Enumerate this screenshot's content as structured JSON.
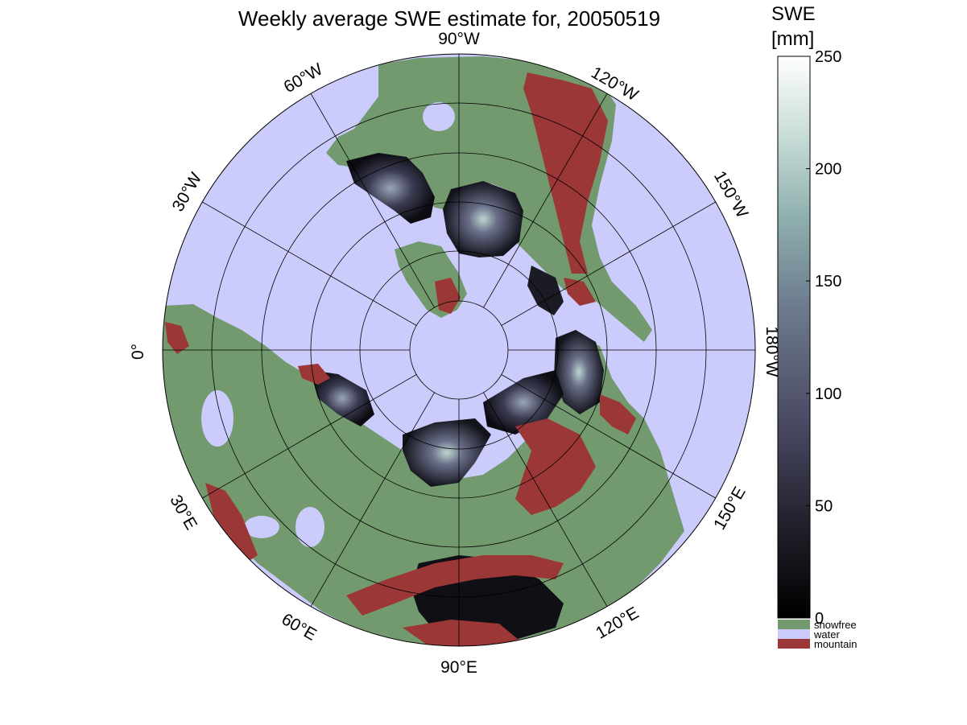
{
  "title": "Weekly average SWE estimate for, 20050519",
  "colorbar": {
    "label_line1": "SWE",
    "label_line2": "[mm]",
    "ticks": [
      "0",
      "50",
      "100",
      "150",
      "200",
      "250"
    ],
    "range": [
      0,
      250
    ]
  },
  "categories": [
    {
      "name": "snowfree",
      "color": "#739a6e"
    },
    {
      "name": "water",
      "color": "#ccccfc"
    },
    {
      "name": "mountain",
      "color": "#9b3737"
    }
  ],
  "longitude_labels": {
    "deg_90W": "90°W",
    "deg_120W": "120°W",
    "deg_150W": "150°W",
    "deg_180W": "180°W",
    "deg_150E": "150°E",
    "deg_120E": "120°E",
    "deg_90E": "90°E",
    "deg_60E": "60°E",
    "deg_30E": "30°E",
    "deg_0": "0°",
    "deg_30W": "30°W",
    "deg_60W": "60°W"
  },
  "colors": {
    "water": "#ccccfc",
    "land": "#739a6e",
    "mountain": "#9b3737",
    "snow_low": "#0b0b10",
    "snow_mid": "#5a5a7a",
    "snow_high": "#c6ded6"
  }
}
